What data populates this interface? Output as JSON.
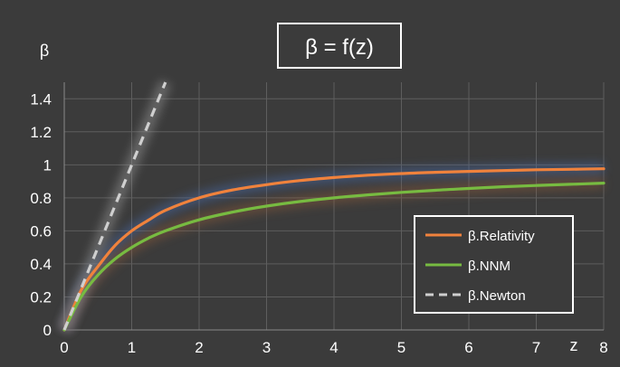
{
  "chart_data": {
    "type": "line",
    "title": "β = f(z)",
    "xlabel": "z",
    "ylabel": "β",
    "xlim": [
      0,
      8
    ],
    "ylim": [
      0,
      1.5
    ],
    "x_ticks": [
      "0",
      "1",
      "2",
      "3",
      "4",
      "5",
      "6",
      "7",
      "8"
    ],
    "y_ticks": [
      "0",
      "0.2",
      "0.4",
      "0.6",
      "0.8",
      "1",
      "1.2",
      "1.4"
    ],
    "grid": true,
    "legend_position": "bottom-right",
    "series": [
      {
        "name": "β.Relativity",
        "color": "#f0823c",
        "style": "solid",
        "x": [
          0,
          0.25,
          0.5,
          0.75,
          1,
          1.25,
          1.5,
          2,
          2.5,
          3,
          3.5,
          4,
          4.5,
          5,
          5.5,
          6,
          6.5,
          7,
          7.5,
          8
        ],
        "y": [
          0,
          0.24,
          0.385,
          0.51,
          0.6,
          0.665,
          0.724,
          0.8,
          0.848,
          0.88,
          0.905,
          0.923,
          0.937,
          0.947,
          0.955,
          0.96,
          0.965,
          0.97,
          0.973,
          0.976
        ]
      },
      {
        "name": "β.NNM",
        "color": "#77bb41",
        "style": "solid",
        "x": [
          0,
          0.25,
          0.5,
          0.75,
          1,
          1.25,
          1.5,
          2,
          2.5,
          3,
          3.5,
          4,
          4.5,
          5,
          5.5,
          6,
          6.5,
          7,
          7.5,
          8
        ],
        "y": [
          0,
          0.2,
          0.333,
          0.429,
          0.5,
          0.556,
          0.6,
          0.667,
          0.714,
          0.75,
          0.778,
          0.8,
          0.818,
          0.833,
          0.846,
          0.857,
          0.867,
          0.875,
          0.882,
          0.889
        ]
      },
      {
        "name": "β.Newton",
        "color": "#cfcfcf",
        "style": "dashed",
        "x": [
          0,
          1.5
        ],
        "y": [
          0,
          1.5
        ]
      }
    ]
  }
}
